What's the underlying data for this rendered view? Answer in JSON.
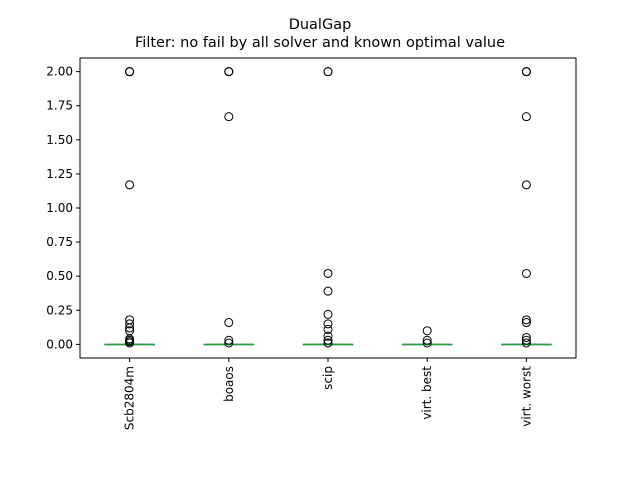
{
  "chart_data": {
    "type": "boxplot",
    "title": "DualGap",
    "subtitle": "Filter: no fail by all solver and known optimal value",
    "xlabel": "",
    "ylabel": "",
    "categories": [
      "Scb2804m",
      "boaos",
      "scip",
      "virt. best",
      "virt. worst"
    ],
    "ylim": [
      -0.1,
      2.1
    ],
    "yticks": [
      0.0,
      0.25,
      0.5,
      0.75,
      1.0,
      1.25,
      1.5,
      1.75,
      2.0
    ],
    "ytick_labels": [
      "0.00",
      "0.25",
      "0.50",
      "0.75",
      "1.00",
      "1.25",
      "1.50",
      "1.75",
      "2.00"
    ],
    "grid": false,
    "colors": {
      "median": "#2ca02c",
      "box": "#1f77b4",
      "flier": "#000000"
    },
    "series": [
      {
        "category": "Scb2804m",
        "q1": 0.0,
        "median": 0.0,
        "q3": 0.0,
        "whisker_low": 0.0,
        "whisker_high": 0.0,
        "outliers": [
          2.0,
          2.0,
          2.0,
          1.17,
          0.18,
          0.15,
          0.12,
          0.1,
          0.04,
          0.03,
          0.02,
          0.01
        ]
      },
      {
        "category": "boaos",
        "q1": 0.0,
        "median": 0.0,
        "q3": 0.0,
        "whisker_low": 0.0,
        "whisker_high": 0.0,
        "outliers": [
          2.0,
          2.0,
          2.0,
          1.67,
          0.16,
          0.03,
          0.01
        ]
      },
      {
        "category": "scip",
        "q1": 0.0,
        "median": 0.0,
        "q3": 0.0,
        "whisker_low": 0.0,
        "whisker_high": 0.0,
        "outliers": [
          2.0,
          2.0,
          0.52,
          0.39,
          0.22,
          0.15,
          0.11,
          0.06,
          0.03,
          0.01
        ]
      },
      {
        "category": "virt. best",
        "q1": 0.0,
        "median": 0.0,
        "q3": 0.0,
        "whisker_low": 0.0,
        "whisker_high": 0.0,
        "outliers": [
          0.1,
          0.03,
          0.01
        ]
      },
      {
        "category": "virt. worst",
        "q1": 0.0,
        "median": 0.0,
        "q3": 0.0,
        "whisker_low": 0.0,
        "whisker_high": 0.0,
        "outliers": [
          2.0,
          2.0,
          2.0,
          1.67,
          1.17,
          0.52,
          0.18,
          0.16,
          0.05,
          0.03,
          0.01
        ]
      }
    ]
  }
}
